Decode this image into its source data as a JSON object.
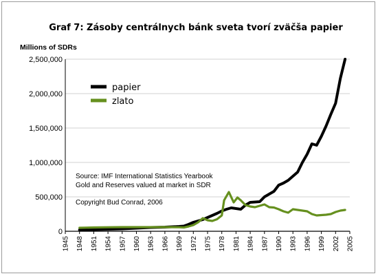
{
  "chart_data": {
    "type": "line",
    "title": "Graf 7: Zásoby centrálnych bánk sveta tvorí zväčša papier",
    "ylabel": "Millions of SDRs",
    "xlabel": "",
    "xlim": [
      1945,
      2005
    ],
    "ylim": [
      0,
      2500000
    ],
    "x_ticks": [
      "1945",
      "1948",
      "1951",
      "1954",
      "1957",
      "1960",
      "1963",
      "1966",
      "1969",
      "1972",
      "1975",
      "1978",
      "1981",
      "1984",
      "1987",
      "1990",
      "1993",
      "1996",
      "1999",
      "2002",
      "2005"
    ],
    "y_ticks": [
      "0",
      "500,000",
      "1,000,000",
      "1,500,000",
      "2,000,000",
      "2,500,000"
    ],
    "y_tick_values": [
      0,
      500000,
      1000000,
      1500000,
      2000000,
      2500000
    ],
    "grid": "horizontal",
    "legend_placement": "top-left",
    "series": [
      {
        "name": "papier",
        "color": "#000000",
        "points": [
          [
            1948,
            20000
          ],
          [
            1951,
            25000
          ],
          [
            1954,
            30000
          ],
          [
            1957,
            35000
          ],
          [
            1960,
            45000
          ],
          [
            1963,
            55000
          ],
          [
            1966,
            60000
          ],
          [
            1969,
            70000
          ],
          [
            1970,
            75000
          ],
          [
            1971,
            100000
          ],
          [
            1972,
            130000
          ],
          [
            1973,
            150000
          ],
          [
            1974,
            170000
          ],
          [
            1975,
            200000
          ],
          [
            1976,
            230000
          ],
          [
            1977,
            260000
          ],
          [
            1978,
            295000
          ],
          [
            1979,
            320000
          ],
          [
            1980,
            340000
          ],
          [
            1981,
            330000
          ],
          [
            1982,
            320000
          ],
          [
            1983,
            380000
          ],
          [
            1984,
            420000
          ],
          [
            1985,
            425000
          ],
          [
            1986,
            430000
          ],
          [
            1987,
            500000
          ],
          [
            1988,
            540000
          ],
          [
            1989,
            580000
          ],
          [
            1990,
            670000
          ],
          [
            1991,
            700000
          ],
          [
            1992,
            740000
          ],
          [
            1993,
            800000
          ],
          [
            1994,
            860000
          ],
          [
            1995,
            1000000
          ],
          [
            1996,
            1120000
          ],
          [
            1997,
            1270000
          ],
          [
            1998,
            1250000
          ],
          [
            1999,
            1380000
          ],
          [
            2000,
            1530000
          ],
          [
            2001,
            1700000
          ],
          [
            2002,
            1860000
          ],
          [
            2003,
            2220000
          ],
          [
            2004,
            2500000
          ]
        ]
      },
      {
        "name": "zlato",
        "color": "#66901f",
        "points": [
          [
            1948,
            50000
          ],
          [
            1951,
            55000
          ],
          [
            1954,
            58000
          ],
          [
            1957,
            60000
          ],
          [
            1960,
            60000
          ],
          [
            1963,
            60000
          ],
          [
            1966,
            60000
          ],
          [
            1969,
            58000
          ],
          [
            1970,
            55000
          ],
          [
            1971,
            70000
          ],
          [
            1972,
            90000
          ],
          [
            1973,
            130000
          ],
          [
            1974,
            190000
          ],
          [
            1975,
            160000
          ],
          [
            1976,
            150000
          ],
          [
            1977,
            175000
          ],
          [
            1978,
            230000
          ],
          [
            1978.5,
            450000
          ],
          [
            1979.5,
            570000
          ],
          [
            1980.5,
            420000
          ],
          [
            1981.3,
            490000
          ],
          [
            1982,
            450000
          ],
          [
            1983,
            380000
          ],
          [
            1984,
            360000
          ],
          [
            1985,
            350000
          ],
          [
            1986,
            370000
          ],
          [
            1987,
            390000
          ],
          [
            1988,
            350000
          ],
          [
            1989,
            345000
          ],
          [
            1990,
            320000
          ],
          [
            1991,
            290000
          ],
          [
            1992,
            270000
          ],
          [
            1993,
            320000
          ],
          [
            1994,
            310000
          ],
          [
            1995,
            300000
          ],
          [
            1996,
            290000
          ],
          [
            1997,
            250000
          ],
          [
            1998,
            230000
          ],
          [
            1999,
            235000
          ],
          [
            2000,
            240000
          ],
          [
            2001,
            250000
          ],
          [
            2002,
            280000
          ],
          [
            2003,
            300000
          ],
          [
            2004,
            310000
          ]
        ]
      }
    ],
    "annotations": [
      "Source: IMF International Statistics Yearbook",
      "Gold and Reserves valued at market in SDR",
      "Copyright Bud Conrad, 2006"
    ]
  }
}
